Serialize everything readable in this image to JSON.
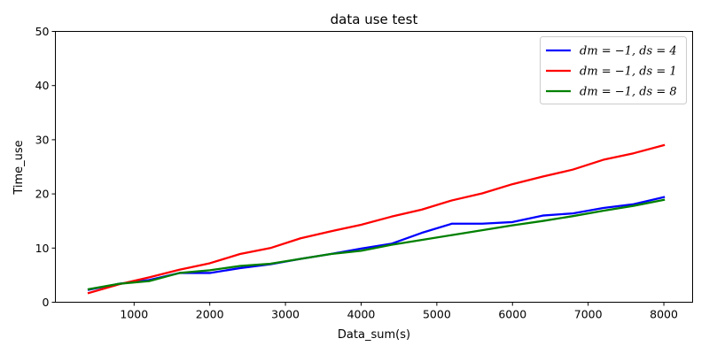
{
  "chart_data": {
    "type": "line",
    "title": "data use test",
    "xlabel": "Data_sum(s)",
    "ylabel": "Time_use",
    "xlim": [
      -40,
      8380
    ],
    "ylim": [
      0,
      50
    ],
    "xticks": [
      1000,
      2000,
      3000,
      4000,
      5000,
      6000,
      7000,
      8000
    ],
    "yticks": [
      0,
      10,
      20,
      30,
      40,
      50
    ],
    "grid": false,
    "legend_position": "upper right",
    "x": [
      400,
      800,
      1200,
      1600,
      2000,
      2400,
      2800,
      3200,
      3600,
      4000,
      4400,
      4800,
      5200,
      5600,
      6000,
      6400,
      6800,
      7200,
      7600,
      8000
    ],
    "series": [
      {
        "name": "dm = −1, ds = 4",
        "color": "#0000ff",
        "values": [
          2.3,
          3.4,
          4.1,
          5.4,
          5.4,
          6.3,
          7.0,
          8.0,
          8.9,
          9.9,
          10.8,
          12.8,
          14.5,
          14.5,
          14.8,
          16.0,
          16.4,
          17.4,
          18.1,
          19.4
        ]
      },
      {
        "name": "dm = −1, ds = 1",
        "color": "#ff0000",
        "values": [
          1.7,
          3.3,
          4.6,
          6.0,
          7.2,
          8.9,
          10.0,
          11.8,
          13.1,
          14.3,
          15.8,
          17.1,
          18.8,
          20.1,
          21.8,
          23.2,
          24.5,
          26.3,
          27.5,
          29.0
        ]
      },
      {
        "name": "dm = −1, ds = 8",
        "color": "#008000",
        "values": [
          2.4,
          3.4,
          3.9,
          5.4,
          5.9,
          6.7,
          7.1,
          8.0,
          8.9,
          9.5,
          10.6,
          11.5,
          12.4,
          13.3,
          14.2,
          15.0,
          15.9,
          16.9,
          17.8,
          18.9
        ]
      }
    ]
  }
}
